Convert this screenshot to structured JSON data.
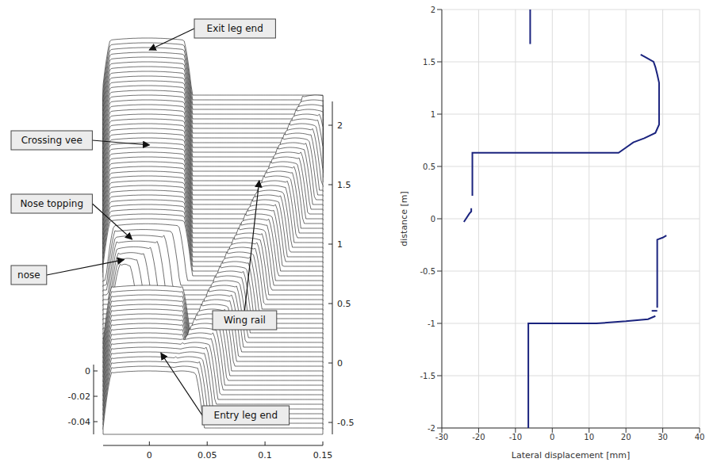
{
  "chart_data": [
    {
      "type": "surface",
      "xlim": [
        -0.04,
        0.15
      ],
      "xticks": [
        0,
        0.05,
        0.1,
        0.15
      ],
      "zlim": [
        -0.05,
        0.005
      ],
      "zticks": [
        -0.04,
        -0.02,
        0
      ],
      "ylim": [
        -0.6,
        2.2
      ],
      "yticks": [
        -0.5,
        0,
        0.5,
        1,
        1.5,
        2
      ],
      "annotations": [
        "Exit leg end",
        "Crossing vee",
        "Nose topping",
        "nose",
        "Wing rail",
        "Entry leg end"
      ]
    },
    {
      "type": "line",
      "xlabel": "Lateral displacement [mm]",
      "ylabel": "distance [m]",
      "color": "#1a237e",
      "grid": true,
      "xlim": [
        -30,
        40
      ],
      "xticks": [
        -30,
        -20,
        -10,
        0,
        10,
        20,
        30,
        40
      ],
      "ylim": [
        -2,
        2
      ],
      "yticks": [
        -2,
        -1.5,
        -1,
        -0.5,
        0,
        0.5,
        1,
        1.5,
        2
      ],
      "x": [
        -6.5,
        -6.5,
        12,
        20,
        26,
        28,
        null,
        27,
        28.5,
        null,
        28.5,
        28.5,
        30,
        31,
        null,
        -24,
        -22.5,
        -22,
        -22,
        null,
        -21.7,
        -21.7,
        18,
        20,
        22,
        25,
        28,
        29,
        29,
        28.5,
        28,
        27.5,
        25,
        24,
        null,
        -6,
        -6
      ],
      "values": [
        -2,
        -1.0,
        -1.0,
        -0.98,
        -0.96,
        -0.93,
        null,
        -0.88,
        -0.88,
        null,
        -0.85,
        -0.2,
        -0.18,
        -0.16,
        null,
        -0.03,
        0.05,
        0.07,
        0.1,
        null,
        0.22,
        0.63,
        0.63,
        0.68,
        0.73,
        0.77,
        0.82,
        0.9,
        1.3,
        1.38,
        1.45,
        1.5,
        1.55,
        1.57,
        null,
        1.67,
        2
      ]
    }
  ]
}
